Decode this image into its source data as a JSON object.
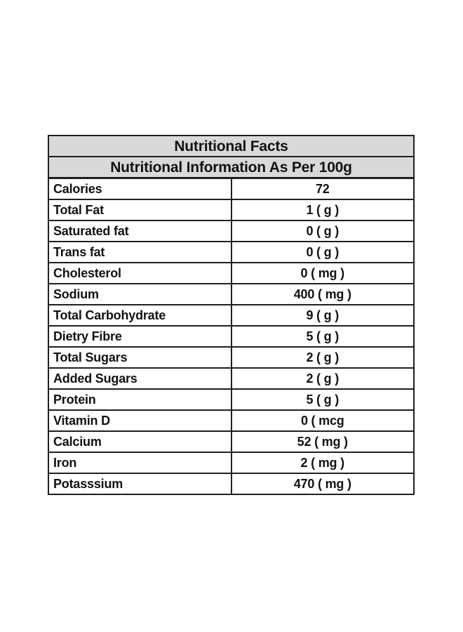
{
  "page": {
    "background_color": "#ffffff"
  },
  "table": {
    "title": "Nutritional Facts",
    "subtitle": "Nutritional Information As Per 100g",
    "header_background_color": "#d9d9d9",
    "border_color": "#1f1f1f",
    "text_color": "#121212",
    "rows": [
      {
        "label": "Calories",
        "value": "72"
      },
      {
        "label": "Total Fat",
        "value": "1 ( g )"
      },
      {
        "label": "Saturated fat",
        "value": "0 ( g )"
      },
      {
        "label": "Trans fat",
        "value": "0 ( g )"
      },
      {
        "label": "Cholesterol",
        "value": "0 ( mg )"
      },
      {
        "label": "Sodium",
        "value": "400 ( mg )"
      },
      {
        "label": "Total Carbohydrate",
        "value": "9 ( g )"
      },
      {
        "label": "Dietry Fibre",
        "value": "5 ( g )"
      },
      {
        "label": "Total Sugars",
        "value": "2 ( g )"
      },
      {
        "label": "Added Sugars",
        "value": "2 ( g )"
      },
      {
        "label": "Protein",
        "value": "5 ( g )"
      },
      {
        "label": "Vitamin D",
        "value": "0 ( mcg"
      },
      {
        "label": "Calcium",
        "value": "52 ( mg )"
      },
      {
        "label": "Iron",
        "value": "2 ( mg )"
      },
      {
        "label": "Potasssium",
        "value": "470 ( mg )"
      }
    ]
  }
}
